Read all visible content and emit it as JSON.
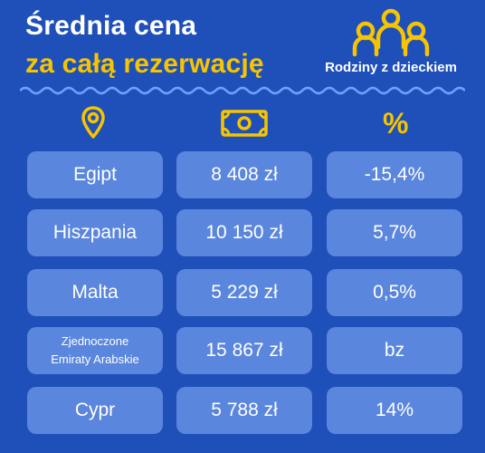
{
  "header": {
    "title_line1": "Średnia cena",
    "title_line2": "za całą rezerwację",
    "badge_label": "Rodziny z dzieckiem"
  },
  "columns": {
    "col1_icon": "location-pin-icon",
    "col2_icon": "banknote-icon",
    "col3_symbol": "%"
  },
  "colors": {
    "background": "#1f4fb8",
    "cell": "#5a86dd",
    "accent": "#f6c400",
    "text": "#ffffff"
  },
  "rows": [
    {
      "country": "Egipt",
      "price": "8 408 zł",
      "change": "-15,4%"
    },
    {
      "country": "Hiszpania",
      "price": "10 150 zł",
      "change": "5,7%"
    },
    {
      "country": "Malta",
      "price": "5 229 zł",
      "change": "0,5%"
    },
    {
      "country_line1": "Zjednoczone",
      "country_line2": "Emiraty Arabskie",
      "price": "15 867 zł",
      "change": "bz"
    },
    {
      "country": "Cypr",
      "price": "5 788 zł",
      "change": "14%"
    }
  ]
}
